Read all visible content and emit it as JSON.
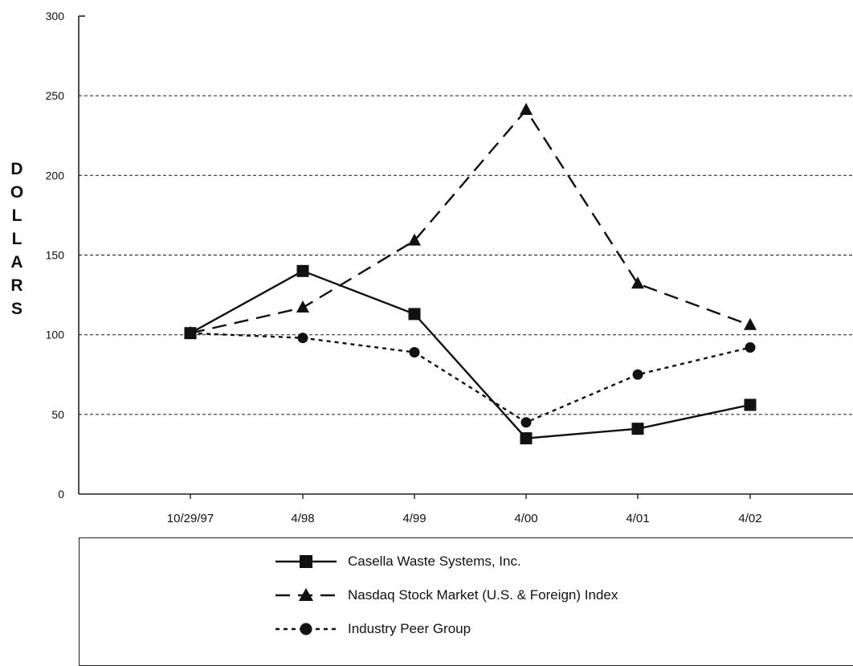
{
  "chart_data": {
    "type": "line",
    "title": "",
    "xlabel": "",
    "ylabel": "DOLLARS",
    "ylim": [
      0,
      300
    ],
    "yticks": [
      0,
      50,
      100,
      150,
      200,
      250,
      300
    ],
    "grid": "horizontal-dashed",
    "categories": [
      "10/29/97",
      "4/98",
      "4/99",
      "4/00",
      "4/01",
      "4/02"
    ],
    "legend_position": "bottom",
    "series": [
      {
        "name": "Casella Waste Systems, Inc.",
        "marker": "square",
        "line": "solid",
        "values": [
          101,
          140,
          113,
          35,
          41,
          56
        ]
      },
      {
        "name": "Nasdaq Stock Market (U.S. & Foreign) Index",
        "marker": "triangle",
        "line": "dashed",
        "values": [
          101,
          117,
          159,
          241,
          132,
          106
        ]
      },
      {
        "name": "Industry Peer Group",
        "marker": "circle",
        "line": "dotted",
        "values": [
          101,
          98,
          89,
          45,
          75,
          92
        ]
      }
    ]
  }
}
